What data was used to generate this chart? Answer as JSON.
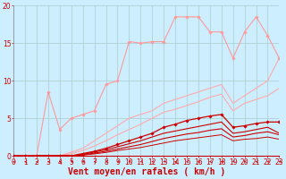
{
  "xlabel": "Vent moyen/en rafales ( km/h )",
  "xlim": [
    0,
    23
  ],
  "ylim": [
    0,
    20
  ],
  "xticks": [
    0,
    1,
    2,
    3,
    4,
    5,
    6,
    7,
    8,
    9,
    10,
    11,
    12,
    13,
    14,
    15,
    16,
    17,
    18,
    19,
    20,
    21,
    22,
    23
  ],
  "yticks": [
    0,
    5,
    10,
    15,
    20
  ],
  "background_color": "#cceeff",
  "grid_color": "#aacccc",
  "series": [
    {
      "x": [
        0,
        1,
        2,
        3,
        4,
        5,
        6,
        7,
        8,
        9,
        10,
        11,
        12,
        13,
        14,
        15,
        16,
        17,
        18,
        19,
        20,
        21,
        22,
        23
      ],
      "y": [
        0,
        0,
        0,
        8.5,
        3.5,
        5.0,
        5.5,
        6.0,
        9.5,
        10,
        15.2,
        15.0,
        15.2,
        15.2,
        18.5,
        18.5,
        18.5,
        16.5,
        16.5,
        13.0,
        16.5,
        18.5,
        16.0,
        13.0
      ],
      "color": "#ff9999",
      "lw": 0.8,
      "marker": "D",
      "ms": 1.8
    },
    {
      "x": [
        0,
        1,
        2,
        3,
        4,
        5,
        6,
        7,
        8,
        9,
        10,
        11,
        12,
        13,
        14,
        15,
        16,
        17,
        18,
        19,
        20,
        21,
        22,
        23
      ],
      "y": [
        0,
        0,
        0,
        0,
        0,
        0.5,
        1.0,
        2.0,
        3.0,
        4.0,
        5.0,
        5.5,
        6.0,
        7.0,
        7.5,
        8.0,
        8.5,
        9.0,
        9.5,
        7.0,
        8.0,
        9.0,
        10.0,
        13.0
      ],
      "color": "#ffaaaa",
      "lw": 0.8,
      "marker": null,
      "ms": 0
    },
    {
      "x": [
        0,
        1,
        2,
        3,
        4,
        5,
        6,
        7,
        8,
        9,
        10,
        11,
        12,
        13,
        14,
        15,
        16,
        17,
        18,
        19,
        20,
        21,
        22,
        23
      ],
      "y": [
        0,
        0,
        0,
        0,
        0,
        0.3,
        0.7,
        1.3,
        2.0,
        2.8,
        3.5,
        4.2,
        5.0,
        5.8,
        6.2,
        6.7,
        7.2,
        7.8,
        8.2,
        6.0,
        7.0,
        7.5,
        8.0,
        9.0
      ],
      "color": "#ffaaaa",
      "lw": 0.8,
      "marker": null,
      "ms": 0
    },
    {
      "x": [
        0,
        1,
        2,
        3,
        4,
        5,
        6,
        7,
        8,
        9,
        10,
        11,
        12,
        13,
        14,
        15,
        16,
        17,
        18,
        19,
        20,
        21,
        22,
        23
      ],
      "y": [
        0,
        0,
        0,
        0,
        0,
        0,
        0.3,
        0.6,
        1.0,
        1.5,
        2.0,
        2.5,
        3.0,
        3.8,
        4.2,
        4.7,
        5.0,
        5.3,
        5.5,
        3.8,
        4.0,
        4.3,
        4.5,
        4.5
      ],
      "color": "#cc0000",
      "lw": 0.9,
      "marker": "D",
      "ms": 1.8
    },
    {
      "x": [
        0,
        1,
        2,
        3,
        4,
        5,
        6,
        7,
        8,
        9,
        10,
        11,
        12,
        13,
        14,
        15,
        16,
        17,
        18,
        19,
        20,
        21,
        22,
        23
      ],
      "y": [
        0,
        0,
        0,
        0,
        0,
        0,
        0.2,
        0.5,
        0.8,
        1.2,
        1.6,
        2.0,
        2.5,
        3.0,
        3.3,
        3.6,
        3.9,
        4.2,
        4.5,
        3.0,
        3.2,
        3.5,
        3.8,
        3.0
      ],
      "color": "#cc0000",
      "lw": 0.8,
      "marker": null,
      "ms": 0
    },
    {
      "x": [
        0,
        1,
        2,
        3,
        4,
        5,
        6,
        7,
        8,
        9,
        10,
        11,
        12,
        13,
        14,
        15,
        16,
        17,
        18,
        19,
        20,
        21,
        22,
        23
      ],
      "y": [
        0,
        0,
        0,
        0,
        0,
        0,
        0.15,
        0.35,
        0.6,
        0.9,
        1.2,
        1.5,
        1.9,
        2.3,
        2.6,
        2.9,
        3.1,
        3.4,
        3.6,
        2.5,
        2.7,
        3.0,
        3.2,
        2.8
      ],
      "color": "#cc0000",
      "lw": 0.8,
      "marker": null,
      "ms": 0
    },
    {
      "x": [
        0,
        1,
        2,
        3,
        4,
        5,
        6,
        7,
        8,
        9,
        10,
        11,
        12,
        13,
        14,
        15,
        16,
        17,
        18,
        19,
        20,
        21,
        22,
        23
      ],
      "y": [
        0,
        0,
        0,
        0,
        0,
        0,
        0.1,
        0.25,
        0.45,
        0.7,
        0.9,
        1.1,
        1.4,
        1.7,
        2.0,
        2.2,
        2.4,
        2.6,
        2.8,
        2.0,
        2.2,
        2.3,
        2.5,
        2.2
      ],
      "color": "#cc0000",
      "lw": 0.7,
      "marker": null,
      "ms": 0
    }
  ],
  "arrows": {
    "x": [
      0,
      1,
      2,
      3,
      4,
      5,
      6,
      7,
      8,
      9,
      10,
      11,
      12,
      13,
      14,
      15,
      16,
      17,
      18,
      19,
      20,
      21,
      22,
      23
    ],
    "angles": [
      270,
      270,
      270,
      270,
      265,
      260,
      255,
      250,
      250,
      245,
      245,
      248,
      248,
      245,
      270,
      270,
      260,
      255,
      255,
      245,
      255,
      255,
      250,
      250
    ]
  },
  "xlabel_color": "#cc0000",
  "xlabel_fontsize": 7,
  "tick_color": "#cc0000",
  "tick_fontsize": 5.5
}
